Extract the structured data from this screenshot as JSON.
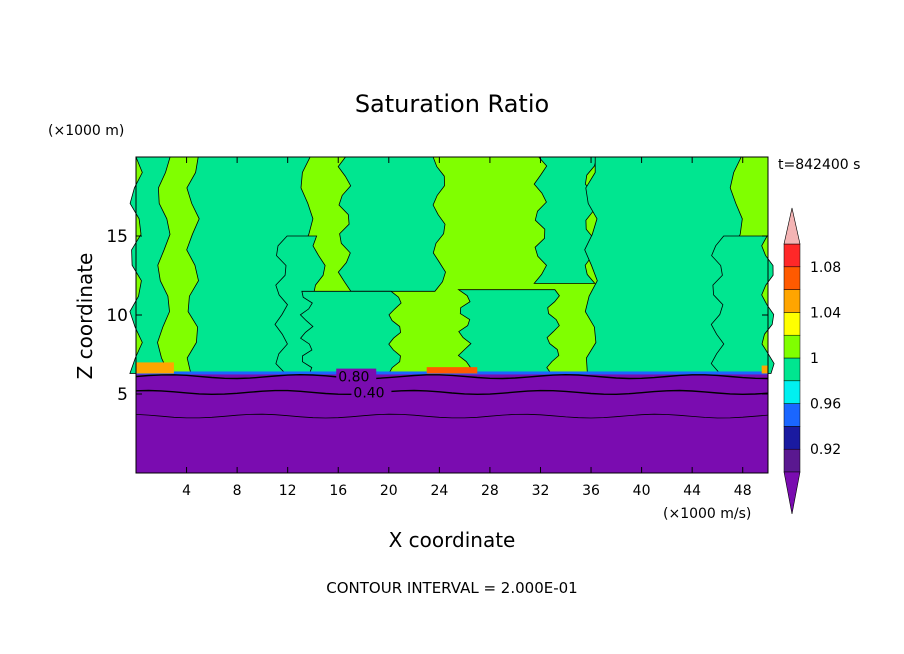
{
  "chart_data": {
    "type": "contour",
    "title": "Saturation Ratio",
    "xlabel": "X coordinate",
    "ylabel": "Z coordinate",
    "x_unit": "(×1000 m/s)",
    "y_unit": "(×1000 m)",
    "time_label": "t=842400 s",
    "footer": "CONTOUR INTERVAL = 2.000E-01",
    "xlim": [
      0,
      50
    ],
    "ylim": [
      0,
      20
    ],
    "x_ticks": [
      4,
      8,
      12,
      16,
      20,
      24,
      28,
      32,
      36,
      40,
      44,
      48
    ],
    "y_ticks": [
      5,
      10,
      15
    ],
    "contour_lines": [
      {
        "level": 0.8,
        "label": "0.80",
        "z": 6.1,
        "label_x": 16
      },
      {
        "level": 0.4,
        "label": "0.40",
        "z": 5.1,
        "label_x": 17.2
      },
      {
        "level": 0.2,
        "label": "",
        "z": 3.6,
        "label_x": null
      }
    ],
    "surface_band_z": 6.3,
    "colorbar": {
      "levels": [
        "0.92",
        "0.96",
        "1",
        "1.04",
        "1.08"
      ],
      "colors": [
        "#5a1890",
        "#1a1aa0",
        "#1a66ff",
        "#00f0f0",
        "#00e690",
        "#80ff00",
        "#ffff00",
        "#ffa500",
        "#ff5a00",
        "#ff2828",
        "#f4b4b4"
      ],
      "under_color": "#7a0cb0",
      "over_color": "#f4b4b4"
    },
    "field_colors": {
      "low": "#7a0cb0",
      "dry_layer": "#00e690",
      "moist_layer": "#80ff00"
    }
  }
}
